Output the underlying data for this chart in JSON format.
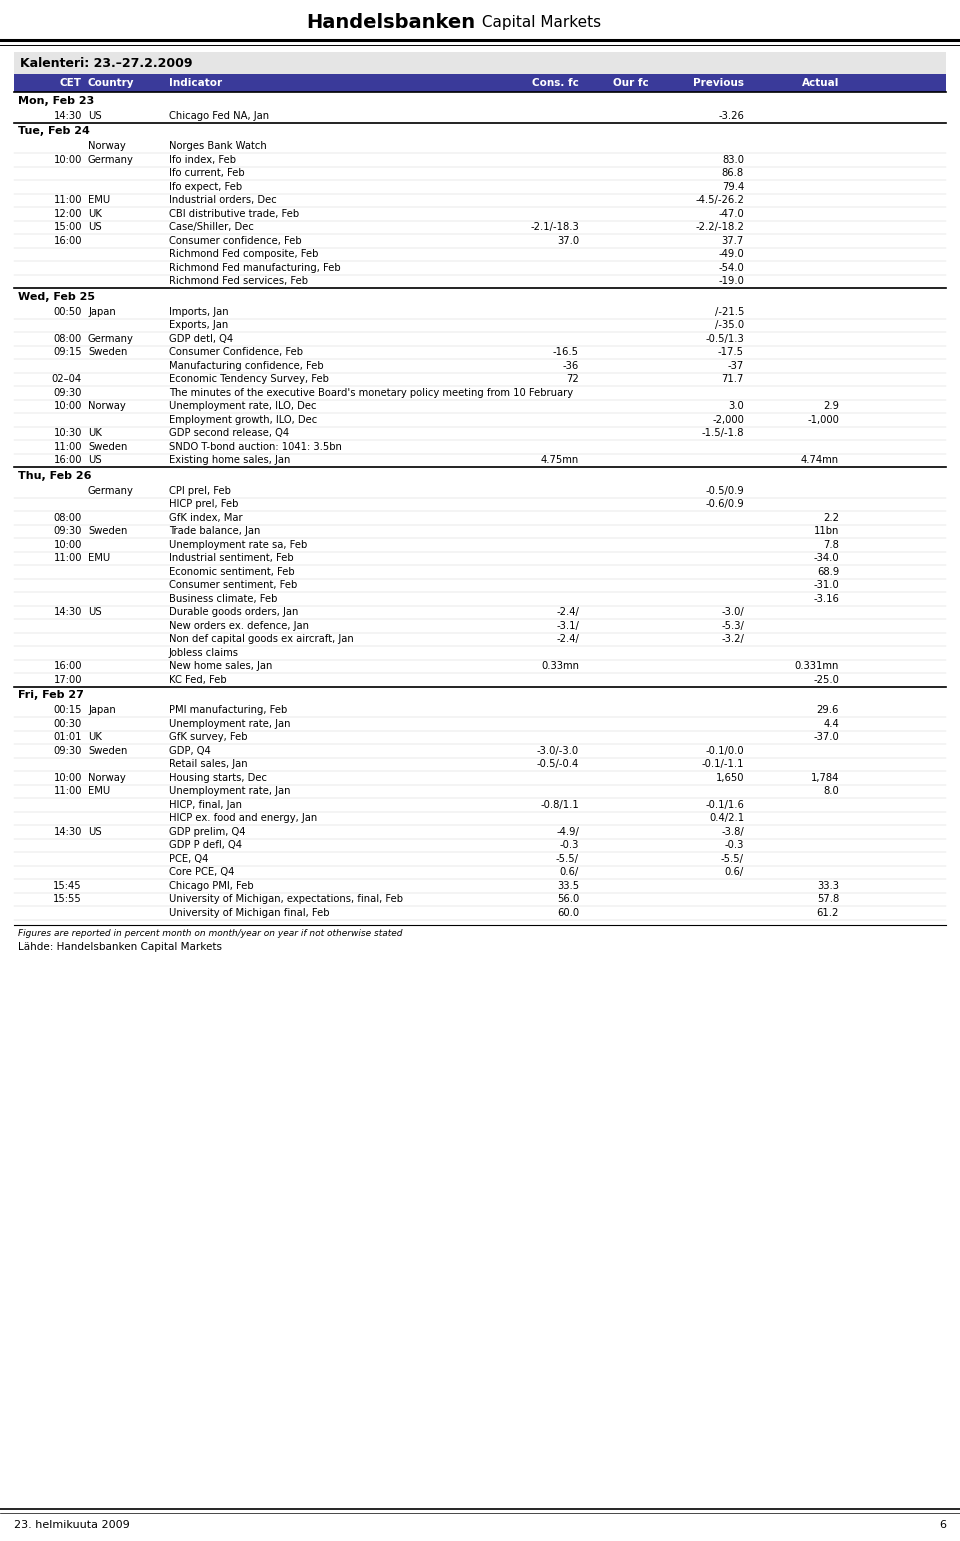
{
  "title_bold": "Handelsbanken",
  "title_regular": " Capital Markets",
  "calendar_title": "Kalenteri: 23.–27.2.2009",
  "header_bg": "#3a3a9a",
  "footer_text": "Figures are reported in percent month on month/year on year if not otherwise stated",
  "footer2_text": "Lähde: Handelsbanken Capital Markets",
  "bottom_left": "23. helmikuuta 2009",
  "bottom_right": "6",
  "rows": [
    {
      "type": "section",
      "label": "Mon, Feb 23"
    },
    {
      "type": "data",
      "cet": "14:30",
      "country": "US",
      "indicator": "Chicago Fed NA, Jan",
      "cons": "",
      "ourfc": "",
      "prev": "-3.26",
      "actual": ""
    },
    {
      "type": "section",
      "label": "Tue, Feb 24"
    },
    {
      "type": "data",
      "cet": "",
      "country": "Norway",
      "indicator": "Norges Bank Watch",
      "cons": "",
      "ourfc": "",
      "prev": "",
      "actual": ""
    },
    {
      "type": "data",
      "cet": "10:00",
      "country": "Germany",
      "indicator": "Ifo index, Feb",
      "cons": "",
      "ourfc": "",
      "prev": "83.0",
      "actual": ""
    },
    {
      "type": "data",
      "cet": "",
      "country": "",
      "indicator": "Ifo current, Feb",
      "cons": "",
      "ourfc": "",
      "prev": "86.8",
      "actual": ""
    },
    {
      "type": "data",
      "cet": "",
      "country": "",
      "indicator": "Ifo expect, Feb",
      "cons": "",
      "ourfc": "",
      "prev": "79.4",
      "actual": ""
    },
    {
      "type": "data",
      "cet": "11:00",
      "country": "EMU",
      "indicator": "Industrial orders, Dec",
      "cons": "",
      "ourfc": "",
      "prev": "-4.5/-26.2",
      "actual": ""
    },
    {
      "type": "data",
      "cet": "12:00",
      "country": "UK",
      "indicator": "CBI distributive trade, Feb",
      "cons": "",
      "ourfc": "",
      "prev": "-47.0",
      "actual": ""
    },
    {
      "type": "data",
      "cet": "15:00",
      "country": "US",
      "indicator": "Case/Shiller, Dec",
      "cons": "-2.1/-18.3",
      "ourfc": "",
      "prev": "-2.2/-18.2",
      "actual": ""
    },
    {
      "type": "data",
      "cet": "16:00",
      "country": "",
      "indicator": "Consumer confidence, Feb",
      "cons": "37.0",
      "ourfc": "",
      "prev": "37.7",
      "actual": ""
    },
    {
      "type": "data",
      "cet": "",
      "country": "",
      "indicator": "Richmond Fed composite, Feb",
      "cons": "",
      "ourfc": "",
      "prev": "-49.0",
      "actual": ""
    },
    {
      "type": "data",
      "cet": "",
      "country": "",
      "indicator": "Richmond Fed manufacturing, Feb",
      "cons": "",
      "ourfc": "",
      "prev": "-54.0",
      "actual": ""
    },
    {
      "type": "data",
      "cet": "",
      "country": "",
      "indicator": "Richmond Fed services, Feb",
      "cons": "",
      "ourfc": "",
      "prev": "-19.0",
      "actual": ""
    },
    {
      "type": "section",
      "label": "Wed, Feb 25"
    },
    {
      "type": "data",
      "cet": "00:50",
      "country": "Japan",
      "indicator": "Imports, Jan",
      "cons": "",
      "ourfc": "",
      "prev": "/-21.5",
      "actual": ""
    },
    {
      "type": "data",
      "cet": "",
      "country": "",
      "indicator": "Exports, Jan",
      "cons": "",
      "ourfc": "",
      "prev": "/-35.0",
      "actual": ""
    },
    {
      "type": "data",
      "cet": "08:00",
      "country": "Germany",
      "indicator": "GDP detl, Q4",
      "cons": "",
      "ourfc": "",
      "prev": "-0.5/1.3",
      "actual": ""
    },
    {
      "type": "data",
      "cet": "09:15",
      "country": "Sweden",
      "indicator": "Consumer Confidence, Feb",
      "cons": "-16.5",
      "ourfc": "",
      "prev": "-17.5",
      "actual": ""
    },
    {
      "type": "data",
      "cet": "",
      "country": "",
      "indicator": "Manufacturing confidence, Feb",
      "cons": "-36",
      "ourfc": "",
      "prev": "-37",
      "actual": ""
    },
    {
      "type": "data",
      "cet": "02–04",
      "country": "",
      "indicator": "Economic Tendency Survey, Feb",
      "cons": "72",
      "ourfc": "",
      "prev": "71.7",
      "actual": ""
    },
    {
      "type": "data",
      "cet": "09:30",
      "country": "",
      "indicator": "The minutes of the executive Board's monetary policy meeting from 10 February",
      "cons": "",
      "ourfc": "",
      "prev": "",
      "actual": ""
    },
    {
      "type": "data",
      "cet": "10:00",
      "country": "Norway",
      "indicator": "Unemployment rate, ILO, Dec",
      "cons": "",
      "ourfc": "",
      "prev": "3.0",
      "actual": "2.9"
    },
    {
      "type": "data",
      "cet": "",
      "country": "",
      "indicator": "Employment growth, ILO, Dec",
      "cons": "",
      "ourfc": "",
      "prev": "-2,000",
      "actual": "-1,000"
    },
    {
      "type": "data",
      "cet": "10:30",
      "country": "UK",
      "indicator": "GDP second release, Q4",
      "cons": "",
      "ourfc": "",
      "prev": "-1.5/-1.8",
      "actual": ""
    },
    {
      "type": "data",
      "cet": "11:00",
      "country": "Sweden",
      "indicator": "SNDO T-bond auction: 1041: 3.5bn",
      "cons": "",
      "ourfc": "",
      "prev": "",
      "actual": ""
    },
    {
      "type": "data",
      "cet": "16:00",
      "country": "US",
      "indicator": "Existing home sales, Jan",
      "cons": "4.75mn",
      "ourfc": "",
      "prev": "",
      "actual": "4.74mn"
    },
    {
      "type": "section",
      "label": "Thu, Feb 26"
    },
    {
      "type": "data",
      "cet": "",
      "country": "Germany",
      "indicator": "CPI prel, Feb",
      "cons": "",
      "ourfc": "",
      "prev": "-0.5/0.9",
      "actual": ""
    },
    {
      "type": "data",
      "cet": "",
      "country": "",
      "indicator": "HICP prel, Feb",
      "cons": "",
      "ourfc": "",
      "prev": "-0.6/0.9",
      "actual": ""
    },
    {
      "type": "data",
      "cet": "08:00",
      "country": "",
      "indicator": "GfK index, Mar",
      "cons": "",
      "ourfc": "",
      "prev": "",
      "actual": "2.2"
    },
    {
      "type": "data",
      "cet": "09:30",
      "country": "Sweden",
      "indicator": "Trade balance, Jan",
      "cons": "",
      "ourfc": "",
      "prev": "",
      "actual": "11bn"
    },
    {
      "type": "data",
      "cet": "10:00",
      "country": "",
      "indicator": "Unemployment rate sa, Feb",
      "cons": "",
      "ourfc": "",
      "prev": "",
      "actual": "7.8"
    },
    {
      "type": "data",
      "cet": "11:00",
      "country": "EMU",
      "indicator": "Industrial sentiment, Feb",
      "cons": "",
      "ourfc": "",
      "prev": "",
      "actual": "-34.0"
    },
    {
      "type": "data",
      "cet": "",
      "country": "",
      "indicator": "Economic sentiment, Feb",
      "cons": "",
      "ourfc": "",
      "prev": "",
      "actual": "68.9"
    },
    {
      "type": "data",
      "cet": "",
      "country": "",
      "indicator": "Consumer sentiment, Feb",
      "cons": "",
      "ourfc": "",
      "prev": "",
      "actual": "-31.0"
    },
    {
      "type": "data",
      "cet": "",
      "country": "",
      "indicator": "Business climate, Feb",
      "cons": "",
      "ourfc": "",
      "prev": "",
      "actual": "-3.16"
    },
    {
      "type": "data",
      "cet": "14:30",
      "country": "US",
      "indicator": "Durable goods orders, Jan",
      "cons": "-2.4/",
      "ourfc": "",
      "prev": "-3.0/",
      "actual": ""
    },
    {
      "type": "data",
      "cet": "",
      "country": "",
      "indicator": "New orders ex. defence, Jan",
      "cons": "-3.1/",
      "ourfc": "",
      "prev": "-5.3/",
      "actual": ""
    },
    {
      "type": "data",
      "cet": "",
      "country": "",
      "indicator": "Non def capital goods ex aircraft, Jan",
      "cons": "-2.4/",
      "ourfc": "",
      "prev": "-3.2/",
      "actual": ""
    },
    {
      "type": "data",
      "cet": "",
      "country": "",
      "indicator": "Jobless claims",
      "cons": "",
      "ourfc": "",
      "prev": "",
      "actual": ""
    },
    {
      "type": "data",
      "cet": "16:00",
      "country": "",
      "indicator": "New home sales, Jan",
      "cons": "0.33mn",
      "ourfc": "",
      "prev": "",
      "actual": "0.331mn"
    },
    {
      "type": "data",
      "cet": "17:00",
      "country": "",
      "indicator": "KC Fed, Feb",
      "cons": "",
      "ourfc": "",
      "prev": "",
      "actual": "-25.0"
    },
    {
      "type": "section",
      "label": "Fri, Feb 27"
    },
    {
      "type": "data",
      "cet": "00:15",
      "country": "Japan",
      "indicator": "PMI manufacturing, Feb",
      "cons": "",
      "ourfc": "",
      "prev": "",
      "actual": "29.6"
    },
    {
      "type": "data",
      "cet": "00:30",
      "country": "",
      "indicator": "Unemployment rate, Jan",
      "cons": "",
      "ourfc": "",
      "prev": "",
      "actual": "4.4"
    },
    {
      "type": "data",
      "cet": "01:01",
      "country": "UK",
      "indicator": "GfK survey, Feb",
      "cons": "",
      "ourfc": "",
      "prev": "",
      "actual": "-37.0"
    },
    {
      "type": "data",
      "cet": "09:30",
      "country": "Sweden",
      "indicator": "GDP, Q4",
      "cons": "-3.0/-3.0",
      "ourfc": "",
      "prev": "-0.1/0.0",
      "actual": ""
    },
    {
      "type": "data",
      "cet": "",
      "country": "",
      "indicator": "Retail sales, Jan",
      "cons": "-0.5/-0.4",
      "ourfc": "",
      "prev": "-0.1/-1.1",
      "actual": ""
    },
    {
      "type": "data",
      "cet": "10:00",
      "country": "Norway",
      "indicator": "Housing starts, Dec",
      "cons": "",
      "ourfc": "",
      "prev": "1,650",
      "actual": "1,784"
    },
    {
      "type": "data",
      "cet": "11:00",
      "country": "EMU",
      "indicator": "Unemployment rate, Jan",
      "cons": "",
      "ourfc": "",
      "prev": "",
      "actual": "8.0"
    },
    {
      "type": "data",
      "cet": "",
      "country": "",
      "indicator": "HICP, final, Jan",
      "cons": "-0.8/1.1",
      "ourfc": "",
      "prev": "-0.1/1.6",
      "actual": ""
    },
    {
      "type": "data",
      "cet": "",
      "country": "",
      "indicator": "HICP ex. food and energy, Jan",
      "cons": "",
      "ourfc": "",
      "prev": "0.4/2.1",
      "actual": ""
    },
    {
      "type": "data",
      "cet": "14:30",
      "country": "US",
      "indicator": "GDP prelim, Q4",
      "cons": "-4.9/",
      "ourfc": "",
      "prev": "-3.8/",
      "actual": ""
    },
    {
      "type": "data",
      "cet": "",
      "country": "",
      "indicator": "GDP P defl, Q4",
      "cons": "-0.3",
      "ourfc": "",
      "prev": "-0.3",
      "actual": ""
    },
    {
      "type": "data",
      "cet": "",
      "country": "",
      "indicator": "PCE, Q4",
      "cons": "-5.5/",
      "ourfc": "",
      "prev": "-5.5/",
      "actual": ""
    },
    {
      "type": "data",
      "cet": "",
      "country": "",
      "indicator": "Core PCE, Q4",
      "cons": "0.6/",
      "ourfc": "",
      "prev": "0.6/",
      "actual": ""
    },
    {
      "type": "data",
      "cet": "15:45",
      "country": "",
      "indicator": "Chicago PMI, Feb",
      "cons": "33.5",
      "ourfc": "",
      "prev": "",
      "actual": "33.3"
    },
    {
      "type": "data",
      "cet": "15:55",
      "country": "",
      "indicator": "University of Michigan, expectations, final, Feb",
      "cons": "56.0",
      "ourfc": "",
      "prev": "",
      "actual": "57.8"
    },
    {
      "type": "data",
      "cet": "",
      "country": "",
      "indicator": "University of Michigan final, Feb",
      "cons": "60.0",
      "ourfc": "",
      "prev": "",
      "actual": "61.2"
    }
  ]
}
